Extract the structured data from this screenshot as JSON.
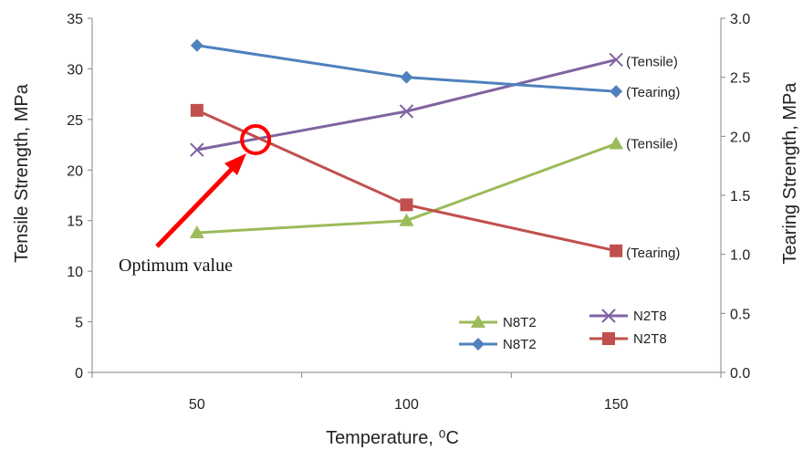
{
  "chart_data": {
    "type": "line",
    "xlabel": "Temperature, ⁰C",
    "ylabel_left": "Tensile  Strength, MPa",
    "ylabel_right": "Tearing  Strength, MPa",
    "categories": [
      50,
      100,
      150
    ],
    "x_ticks": [
      "50",
      "100",
      "150"
    ],
    "ylim_left": [
      0,
      35
    ],
    "ylim_right": [
      0,
      3.0
    ],
    "y_ticks_left": [
      "0",
      "5",
      "10",
      "15",
      "20",
      "25",
      "30",
      "35"
    ],
    "y_ticks_right": [
      "0.0",
      "0.5",
      "1.0",
      "1.5",
      "2.0",
      "2.5",
      "3.0"
    ],
    "grid": false,
    "legend_position": "bottom-right",
    "series": [
      {
        "name": "N8T2",
        "axis": "left",
        "marker": "triangle",
        "color": "#9bbb59",
        "values": [
          13.8,
          15.0,
          22.6
        ],
        "end_label": "(Tensile)"
      },
      {
        "name": "N2T8",
        "axis": "left",
        "marker": "x",
        "color": "#8064a2",
        "values": [
          22.0,
          25.8,
          30.9
        ],
        "end_label": "(Tensile)"
      },
      {
        "name": "N8T2",
        "axis": "right",
        "marker": "diamond",
        "color": "#4f81bd",
        "values": [
          2.77,
          2.5,
          2.38
        ],
        "end_label": "(Tearing)"
      },
      {
        "name": "N2T8",
        "axis": "right",
        "marker": "square",
        "color": "#c0504d",
        "values": [
          2.22,
          1.42,
          1.03
        ],
        "end_label": "(Tearing)"
      }
    ],
    "annotation": {
      "text": "Optimum value",
      "x": 64,
      "y_left": 23,
      "color": "#ff0000"
    }
  }
}
